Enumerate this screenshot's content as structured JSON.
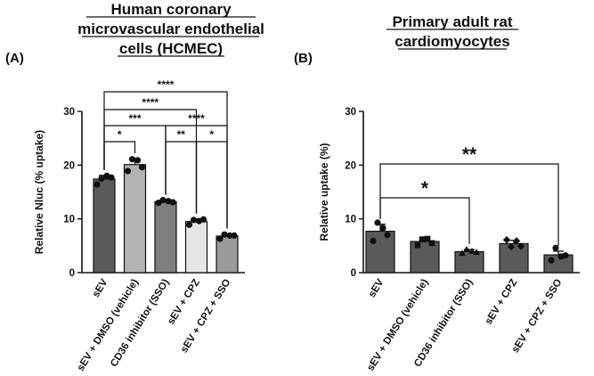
{
  "panels": [
    {
      "label": "(A)",
      "title_lines": [
        "Human coronary",
        "microvascular endothelial",
        "cells (HCMEC)"
      ]
    },
    {
      "label": "(B)",
      "title_lines": [
        "Primary adult rat",
        "cardiomyocytes"
      ]
    }
  ],
  "chart_data": [
    {
      "type": "bar",
      "title": "Human coronary microvascular endothelial cells (HCMEC)",
      "ylabel": "Relative Nluc (% uptake)",
      "ylim": [
        0,
        30
      ],
      "yticks": [
        0,
        10,
        20,
        30
      ],
      "categories": [
        "sEV",
        "sEV + DMSO (vehicle)",
        "CD36 inhibitor (SSO)",
        "sEV + CPZ",
        "sEV + CPZ + SSO"
      ],
      "values": [
        17.4,
        20.1,
        13.2,
        9.5,
        6.8
      ],
      "errors": [
        0.7,
        1.1,
        0.3,
        0.5,
        0.4
      ],
      "bar_colors": [
        "#5a5a5a",
        "#b3b3b3",
        "#7f7f7f",
        "#e6e6e6",
        "#9a9a9a"
      ],
      "points": [
        [
          16.4,
          17.5,
          18.0,
          17.7
        ],
        [
          18.9,
          21.1,
          20.9,
          19.6
        ],
        [
          13.0,
          13.5,
          13.3,
          13.1
        ],
        [
          8.9,
          9.8,
          9.6,
          9.9
        ],
        [
          6.3,
          7.1,
          6.9,
          6.9
        ]
      ],
      "marker": "circle",
      "significance": [
        {
          "from": 0,
          "to": 1,
          "label": "*"
        },
        {
          "from": 0,
          "to": 2,
          "label": "***"
        },
        {
          "from": 0,
          "to": 3,
          "label": "****"
        },
        {
          "from": 0,
          "to": 4,
          "label": "****"
        },
        {
          "from": 2,
          "to": 3,
          "label": "**"
        },
        {
          "from": 2,
          "to": 4,
          "label": "****"
        },
        {
          "from": 3,
          "to": 4,
          "label": "*"
        }
      ]
    },
    {
      "type": "bar",
      "title": "Primary adult rat cardiomyocytes",
      "ylabel": "Relative uptake (%)",
      "ylim": [
        0,
        30
      ],
      "yticks": [
        0,
        10,
        20,
        30
      ],
      "categories": [
        "sEV",
        "sEV + DMSO (vehicle)",
        "CD36 inhibitor (SSO)",
        "sEV + CPZ",
        "sEV + CPZ + SSO"
      ],
      "values": [
        7.7,
        5.8,
        3.9,
        5.4,
        3.3
      ],
      "errors": [
        1.3,
        0.6,
        0.4,
        0.6,
        0.7
      ],
      "bar_colors": [
        "#5a5a5a",
        "#5a5a5a",
        "#5a5a5a",
        "#5a5a5a",
        "#5a5a5a"
      ],
      "points": [
        [
          5.9,
          9.3,
          8.3,
          7.0
        ],
        [
          5.1,
          6.2,
          6.3,
          5.5
        ],
        [
          3.6,
          4.3,
          4.0,
          3.8
        ],
        [
          6.1,
          4.8,
          5.9,
          4.9
        ],
        [
          2.3,
          4.6,
          3.0,
          3.2
        ]
      ],
      "marker": "mixed",
      "significance": [
        {
          "from": 0,
          "to": 2,
          "label": "*"
        },
        {
          "from": 0,
          "to": 4,
          "label": "**"
        }
      ]
    }
  ]
}
